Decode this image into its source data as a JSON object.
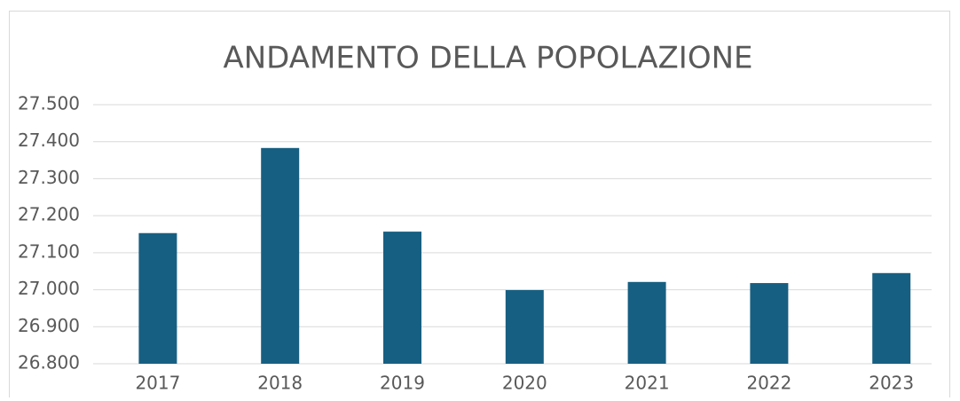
{
  "chart_data": {
    "type": "bar",
    "title": "ANDAMENTO DELLA POPOLAZIONE",
    "categories": [
      "2017",
      "2018",
      "2019",
      "2020",
      "2021",
      "2022",
      "2023"
    ],
    "values": [
      27153,
      27383,
      27157,
      26999,
      27021,
      27018,
      27045
    ],
    "color": "#175f82",
    "ylim": [
      26800,
      27500
    ],
    "yticks": [
      {
        "value": 26800,
        "label": "26.800"
      },
      {
        "value": 26900,
        "label": "26.900"
      },
      {
        "value": 27000,
        "label": "27.000"
      },
      {
        "value": 27100,
        "label": "27.100"
      },
      {
        "value": 27200,
        "label": "27.200"
      },
      {
        "value": 27300,
        "label": "27.300"
      },
      {
        "value": 27400,
        "label": "27.400"
      },
      {
        "value": 27500,
        "label": "27.500"
      }
    ],
    "grid": true
  }
}
